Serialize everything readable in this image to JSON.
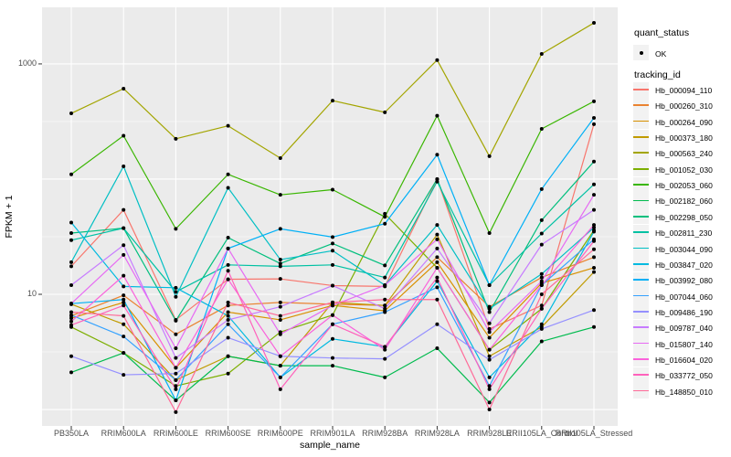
{
  "axes": {
    "y_title": "FPKM + 1",
    "x_title": "sample_name",
    "y_tick_labels": [
      "1000",
      "10"
    ]
  },
  "legend": {
    "quant_status_title": "quant_status",
    "ok_label": "OK",
    "tracking_id_title": "tracking_id"
  },
  "style": {
    "panel_bg": "#EBEBEB",
    "grid_major": "#FFFFFF",
    "grid_minor": "#FFFFFF",
    "tick_mark": "#333333",
    "tick_text": "#4D4D4D",
    "point_color": "#000000",
    "legend_key_bg": "#F2F2F2"
  },
  "chart_data": {
    "type": "line",
    "title": "",
    "xlabel": "sample_name",
    "ylabel": "FPKM + 1",
    "y_scale": "log10",
    "y_major_breaks": [
      1,
      10,
      100,
      1000
    ],
    "y_labeled_breaks": [
      "10",
      "1000"
    ],
    "y_minor_breaks": [
      3.162,
      31.62,
      316.2
    ],
    "ylim": [
      0.72,
      3100
    ],
    "grid": true,
    "legend_position": "right",
    "points": "black filled circles (quant_status = OK)",
    "categories": [
      "PB350LA",
      "RRIM600LA",
      "RRIM600LE",
      "RRIM600SE",
      "RRIM600PE",
      "RRIM901LA",
      "RRIM928BA",
      "RRIM928LA",
      "RRIM928LE",
      "RRII105LA_Control",
      "RRII105LA_Stressed"
    ],
    "series": [
      {
        "name": "Hb_000094_110",
        "color": "#F8766D",
        "values": [
          17.5,
          54,
          6.0,
          13.5,
          13.6,
          11.9,
          11.7,
          100,
          5.0,
          8.0,
          300
        ]
      },
      {
        "name": "Hb_000260_310",
        "color": "#EA8331",
        "values": [
          6.5,
          9.8,
          4.5,
          8.0,
          8.5,
          8.2,
          8.0,
          21,
          7.8,
          14,
          21
        ]
      },
      {
        "name": "Hb_000264_090",
        "color": "#D89000",
        "values": [
          6.2,
          8.5,
          2.3,
          7.0,
          6.0,
          8.0,
          7.2,
          19,
          4.2,
          12.5,
          17
        ]
      },
      {
        "name": "Hb_000373_180",
        "color": "#C09B00",
        "values": [
          8.2,
          5.5,
          1.8,
          2.9,
          2.4,
          8.5,
          8.0,
          33,
          2.9,
          5.2,
          15.6
        ]
      },
      {
        "name": "Hb_000563_240",
        "color": "#A3A500",
        "values": [
          372,
          610,
          224,
          290,
          152,
          480,
          380,
          1080,
          158,
          1220,
          2270
        ]
      },
      {
        "name": "Hb_001052_030",
        "color": "#7CAE00",
        "values": [
          5.2,
          3.1,
          1.6,
          2.05,
          4.7,
          6.6,
          50,
          17,
          3.3,
          7.5,
          36
        ]
      },
      {
        "name": "Hb_002053_060",
        "color": "#39B600",
        "values": [
          110,
          238,
          37,
          110,
          73,
          81,
          47,
          355,
          34,
          273,
          473
        ]
      },
      {
        "name": "Hb_002182_060",
        "color": "#00BB4E",
        "values": [
          2.1,
          3.1,
          1.2,
          2.9,
          2.4,
          2.4,
          1.9,
          3.4,
          1.15,
          3.9,
          5.2
        ]
      },
      {
        "name": "Hb_002298_050",
        "color": "#00BF7D",
        "values": [
          34,
          37.5,
          5.9,
          31,
          18.5,
          27.6,
          17.8,
          100,
          7.0,
          44,
          142
        ]
      },
      {
        "name": "Hb_002811_230",
        "color": "#00C1A3",
        "values": [
          29.5,
          37.5,
          10.5,
          18,
          17.5,
          18,
          14,
          95,
          12,
          33.7,
          90
        ]
      },
      {
        "name": "Hb_003044_090",
        "color": "#00BFC4",
        "values": [
          19,
          129,
          9.5,
          84,
          20,
          23.9,
          12,
          40,
          7.5,
          15,
          38
        ]
      },
      {
        "name": "Hb_003847_020",
        "color": "#00BAE0",
        "values": [
          42,
          11.7,
          11.4,
          6.5,
          1.9,
          4.1,
          3.5,
          13,
          1.9,
          5.5,
          35
        ]
      },
      {
        "name": "Hb_003992_080",
        "color": "#00B0F6",
        "values": [
          8.3,
          9.0,
          1.2,
          25,
          37,
          31.4,
          41,
          163,
          12.0,
          82,
          340
        ]
      },
      {
        "name": "Hb_007044_060",
        "color": "#35A2FF",
        "values": [
          6.6,
          4.3,
          1.8,
          5.5,
          1.9,
          5.5,
          7.0,
          11.5,
          1.6,
          12,
          30
        ]
      },
      {
        "name": "Hb_009486_190",
        "color": "#9590FF",
        "values": [
          2.9,
          2.0,
          2.05,
          4.2,
          2.9,
          2.8,
          2.75,
          5.5,
          2.7,
          5.0,
          7.3
        ]
      },
      {
        "name": "Hb_009787_040",
        "color": "#C77CFF",
        "values": [
          12,
          26.7,
          2.8,
          6.0,
          7.8,
          11.9,
          7.5,
          25,
          5.6,
          27,
          54
        ]
      },
      {
        "name": "Hb_015807_140",
        "color": "#E76BF3",
        "values": [
          8.3,
          22,
          3.4,
          25,
          4.5,
          8.0,
          12,
          30,
          4.7,
          13,
          73
        ]
      },
      {
        "name": "Hb_016604_020",
        "color": "#FA62DB",
        "values": [
          5.8,
          14.5,
          2.3,
          13.5,
          2.9,
          6.6,
          3.3,
          17,
          3.3,
          12,
          40
        ]
      },
      {
        "name": "Hb_033772_050",
        "color": "#FF62BC",
        "values": [
          5.4,
          8.0,
          1.5,
          16,
          1.5,
          5.5,
          3.5,
          14,
          1.5,
          7.5,
          29
        ]
      },
      {
        "name": "Hb_148850_010",
        "color": "#FF6A98",
        "values": [
          7.0,
          6.5,
          0.95,
          8.5,
          6.5,
          8.5,
          9.0,
          9.0,
          1.0,
          10,
          24.6
        ]
      }
    ]
  }
}
